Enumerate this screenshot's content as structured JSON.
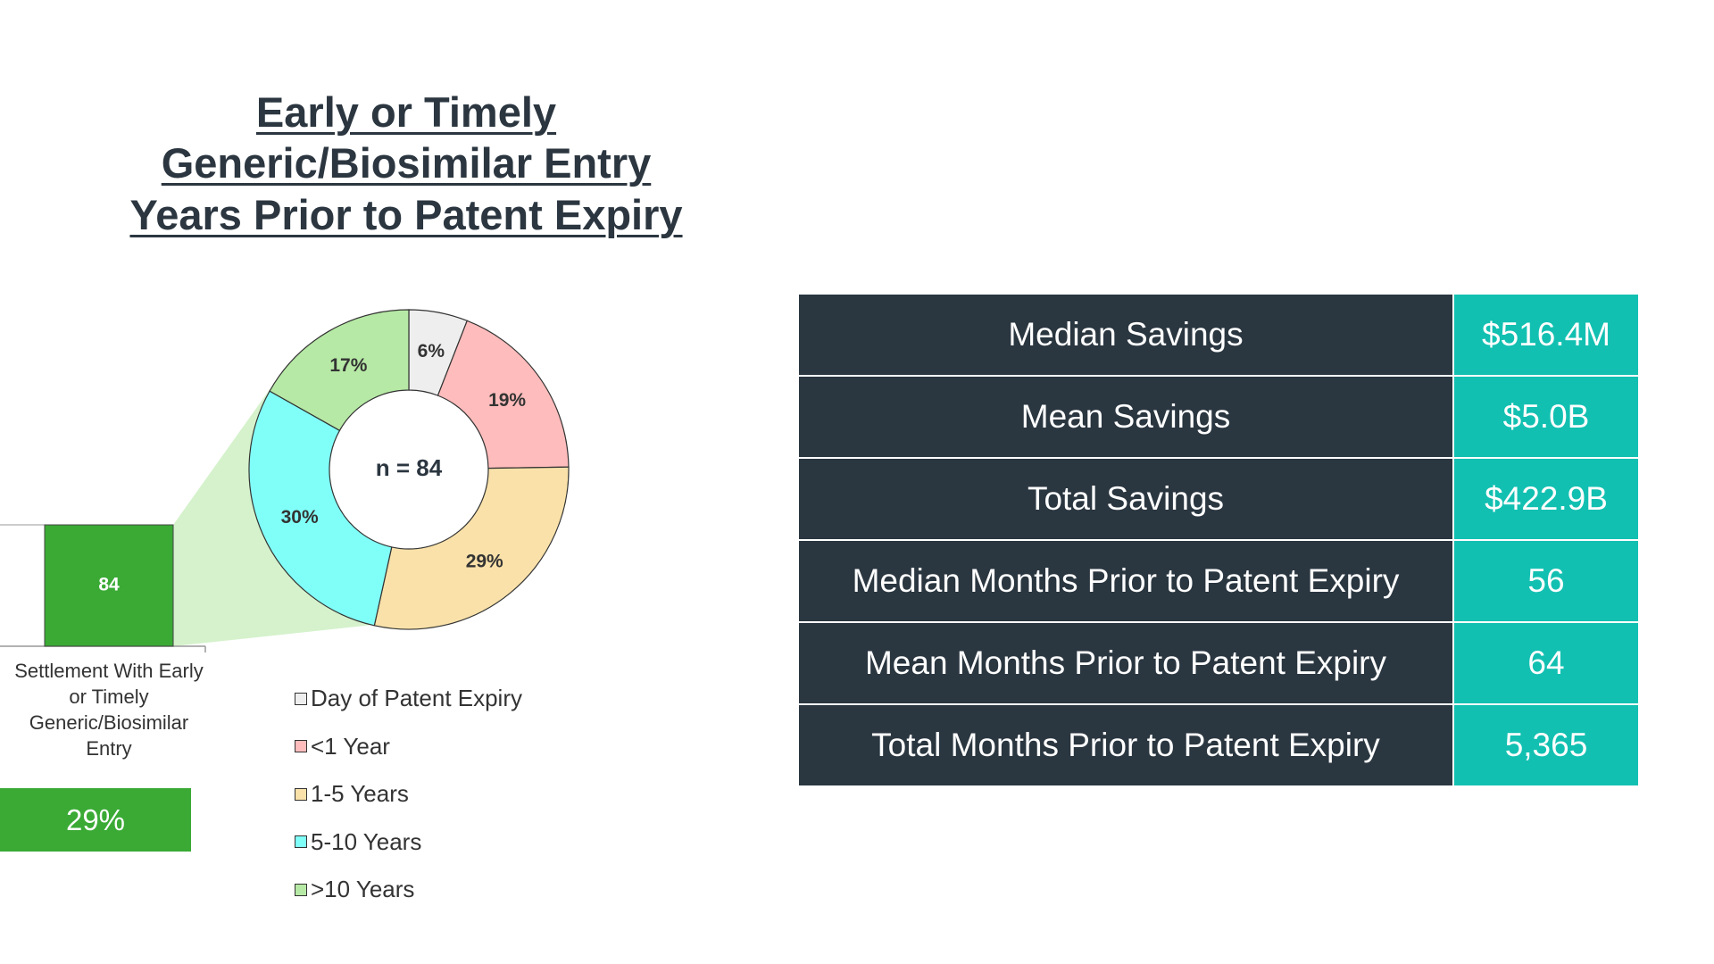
{
  "title": [
    "Early or Timely",
    "Generic/Biosimilar Entry",
    "Years Prior to Patent Expiry"
  ],
  "chart_data": [
    {
      "type": "donut",
      "annotation": "n = 84",
      "categories": [
        "Day of Patent Expiry",
        "<1 Year",
        "1-5 Years",
        "5-10 Years",
        ">10 Years"
      ],
      "values": [
        6,
        19,
        29,
        30,
        17
      ],
      "value_labels": [
        "6%",
        "19%",
        "29%",
        "30%",
        "17%"
      ],
      "colors": [
        "#eeeeee",
        "#ffbcbc",
        "#f9e1a9",
        "#80fff8",
        "#b6e9a5"
      ]
    },
    {
      "type": "bar",
      "categories": [
        "Settlement With Early or Timely Generic/Biosimilar Entry"
      ],
      "values": [
        84
      ],
      "color": "#3aaa35"
    }
  ],
  "highlight": "29%",
  "table": {
    "rows": [
      [
        "Median Savings",
        "$516.4M"
      ],
      [
        "Mean Savings",
        "$5.0B"
      ],
      [
        "Total Savings",
        "$422.9B"
      ],
      [
        "Median Months Prior to Patent Expiry",
        "56"
      ],
      [
        "Mean Months Prior to Patent Expiry",
        "64"
      ],
      [
        "Total Months Prior to Patent Expiry",
        "5,365"
      ]
    ]
  }
}
